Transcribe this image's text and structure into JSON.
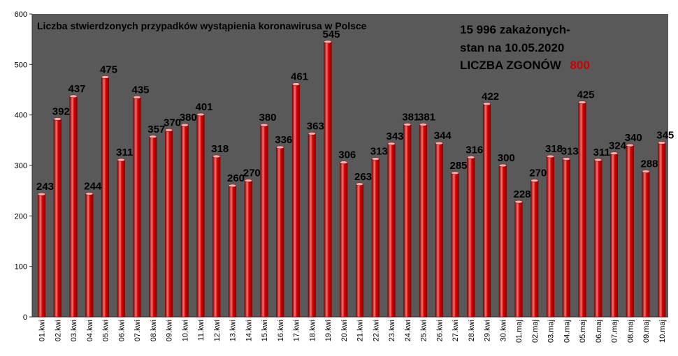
{
  "chart_data": {
    "type": "bar",
    "title": "Liczba stwierdzonych przypadków wystąpienia koronawirusa w Polsce",
    "ylim": [
      0,
      600
    ],
    "yticks": [
      0,
      100,
      200,
      300,
      400,
      500,
      600
    ],
    "grid": false,
    "categories": [
      "01.kwi",
      "02.kwi",
      "03.kwi",
      "04.kwi",
      "05.kwi",
      "06.kwi",
      "07.kwi",
      "08.kwi",
      "09.kwi",
      "10.kwi",
      "11.kwi",
      "12.kwi",
      "13.kwi",
      "14.kwi",
      "15.kwi",
      "16.kwi",
      "17.kwi",
      "18.kwi",
      "19.kwi",
      "20.kwi",
      "21.kwi",
      "22.kwi",
      "23.kwi",
      "24.kwi",
      "25.kwi",
      "26.kwi",
      "27.kwi",
      "28.kwi",
      "29.kwi",
      "30.kwi",
      "01.maj",
      "02.maj",
      "03.maj",
      "04.maj",
      "05.maj",
      "06.maj",
      "07.maj",
      "08.maj",
      "09.maj",
      "10.maj"
    ],
    "values": [
      243,
      392,
      437,
      244,
      475,
      311,
      435,
      357,
      370,
      380,
      401,
      318,
      260,
      270,
      380,
      336,
      461,
      363,
      545,
      306,
      263,
      313,
      343,
      381,
      381,
      344,
      285,
      316,
      422,
      300,
      228,
      270,
      318,
      313,
      425,
      311,
      324,
      340,
      288,
      345
    ],
    "colors": {
      "plot_bg": "#595959",
      "bar": "#cc0000",
      "bar_edge": "#7a0000",
      "bar_highlight": "#ff8080"
    }
  },
  "annotations": {
    "total_line": "15 996 zakażonych-",
    "date_line": "stan na 10.05.2020",
    "deaths_label": "LICZBA ZGONÓW",
    "deaths_value": "800",
    "deaths_color": "#cc0000"
  }
}
